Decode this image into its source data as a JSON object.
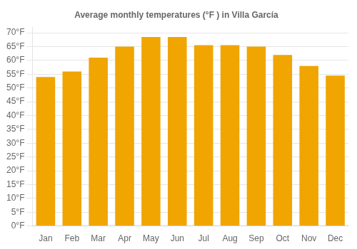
{
  "chart_data": {
    "type": "bar",
    "title": "Average monthly temperatures (°F ) in Villa García",
    "categories": [
      "Jan",
      "Feb",
      "Mar",
      "Apr",
      "May",
      "Jun",
      "Jul",
      "Aug",
      "Sep",
      "Oct",
      "Nov",
      "Dec"
    ],
    "values": [
      54,
      56,
      61,
      65,
      68.5,
      68.5,
      65.5,
      65.5,
      65,
      62,
      58,
      54.5
    ],
    "color": "#F0A500",
    "ylim": [
      0,
      72
    ],
    "yticks": [
      {
        "value": 0,
        "label": "0°F"
      },
      {
        "value": 5,
        "label": "5°F"
      },
      {
        "value": 10,
        "label": "10°F"
      },
      {
        "value": 15,
        "label": "15°F"
      },
      {
        "value": 20,
        "label": "20°F"
      },
      {
        "value": 25,
        "label": "25°F"
      },
      {
        "value": 30,
        "label": "30°F"
      },
      {
        "value": 35,
        "label": "35°F"
      },
      {
        "value": 40,
        "label": "40°F"
      },
      {
        "value": 45,
        "label": "45°F"
      },
      {
        "value": 50,
        "label": "50°F"
      },
      {
        "value": 55,
        "label": "55°F"
      },
      {
        "value": 60,
        "label": "60°F"
      },
      {
        "value": 65,
        "label": "65°F"
      },
      {
        "value": 70,
        "label": "70°F"
      }
    ],
    "grid": true
  }
}
